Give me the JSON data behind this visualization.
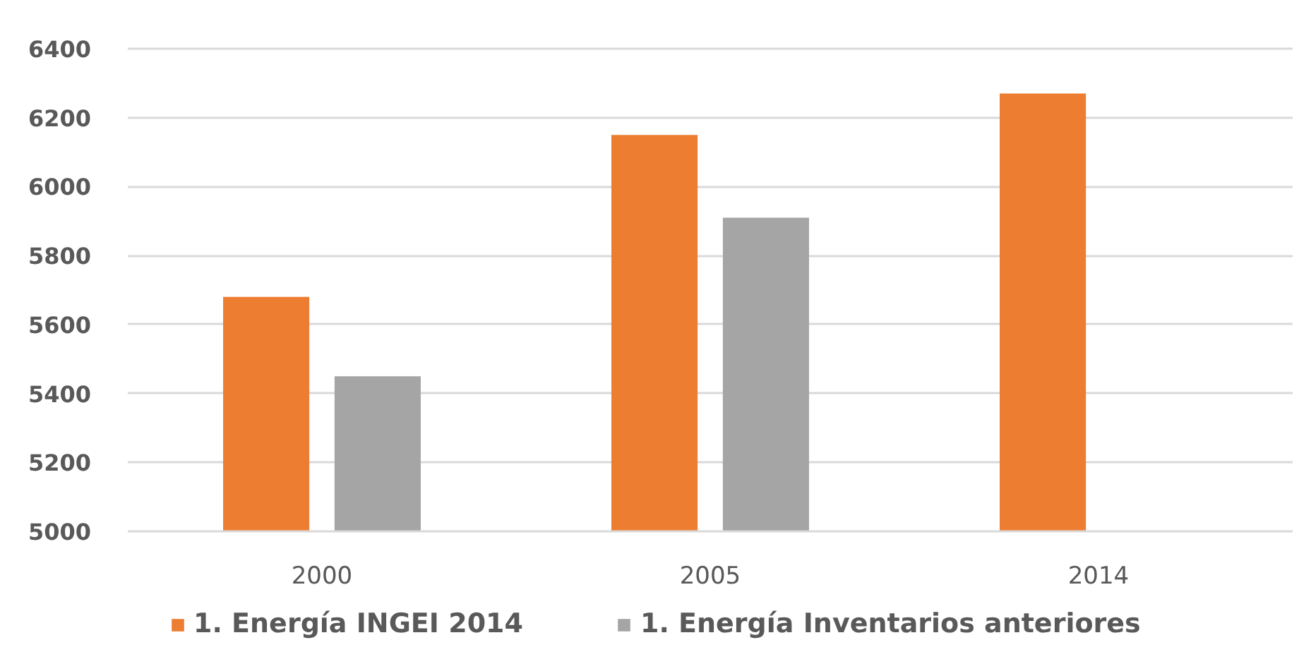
{
  "chart_data": {
    "type": "bar",
    "categories": [
      "2000",
      "2005",
      "2014"
    ],
    "series": [
      {
        "name": "1. Energía INGEI 2014",
        "color": "#ed7d31",
        "values": [
          5680,
          6150,
          6270
        ]
      },
      {
        "name": "1. Energía Inventarios anteriores",
        "color": "#a5a5a5",
        "values": [
          5450,
          5910,
          null
        ]
      }
    ],
    "ylim": [
      5000,
      6400
    ],
    "yticks": [
      5000,
      5200,
      5400,
      5600,
      5800,
      6000,
      6200,
      6400
    ],
    "grid": "y",
    "legend": "bottom"
  }
}
